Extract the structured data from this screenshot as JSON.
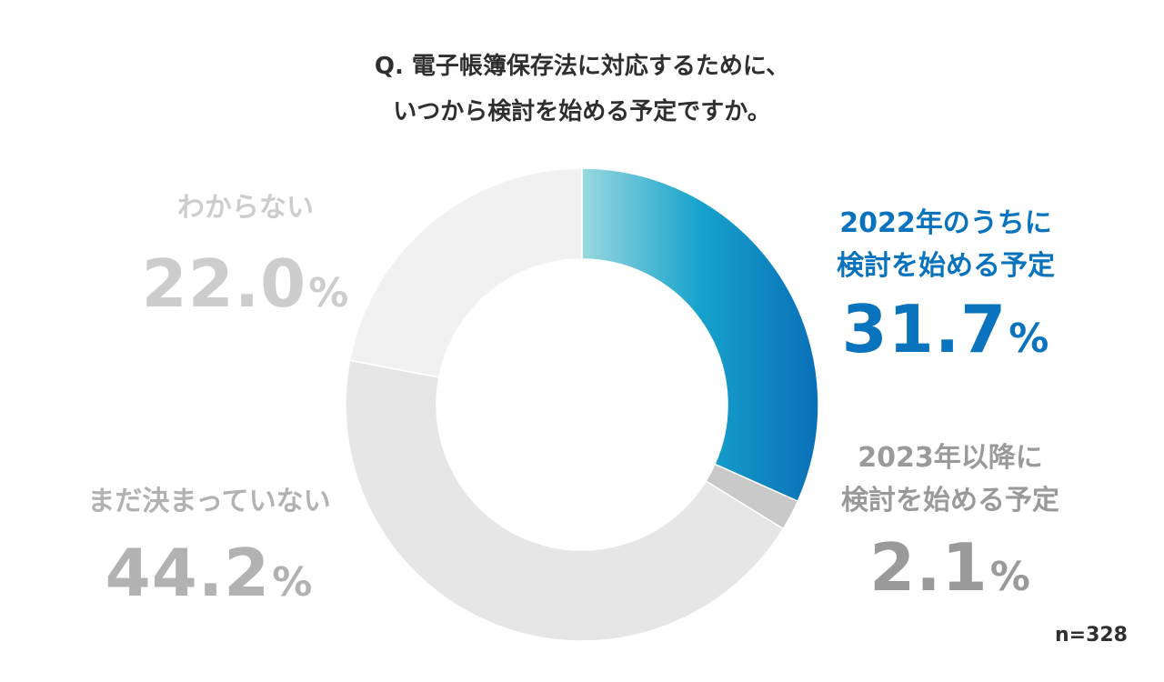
{
  "title": {
    "line1": "Q. 電子帳簿保存法に対応するために、",
    "line2": "いつから検討を始める予定ですか。"
  },
  "sample": "n=328",
  "colors": {
    "primary_start": "#9ad8e0",
    "primary_mid": "#16a3cc",
    "primary_end": "#0a6fb8",
    "label_2022": "#0a73bd",
    "slice_2023": "#c9c9c9",
    "slice_undecided": "#e6e6e6",
    "slice_unknown": "#f1f1f1"
  },
  "labels": {
    "y2022": {
      "line1": "2022年のうちに",
      "line2": "検討を始める予定",
      "value": "31.7",
      "pct": "%"
    },
    "y2023": {
      "line1": "2023年以降に",
      "line2": "検討を始める予定",
      "value": "2.1",
      "pct": "%"
    },
    "undecided": {
      "line1": "まだ決まっていない",
      "value": "44.2",
      "pct": "%"
    },
    "unknown": {
      "line1": "わからない",
      "value": "22.0",
      "pct": "%"
    }
  },
  "chart_data": {
    "type": "pie",
    "subtype": "donut",
    "categories": [
      "2022年のうちに検討を始める予定",
      "2023年以降に検討を始める予定",
      "まだ決まっていない",
      "わからない"
    ],
    "values": [
      31.7,
      2.1,
      44.2,
      22.0
    ],
    "unit": "%",
    "start_angle_deg": 0,
    "direction": "clockwise"
  }
}
